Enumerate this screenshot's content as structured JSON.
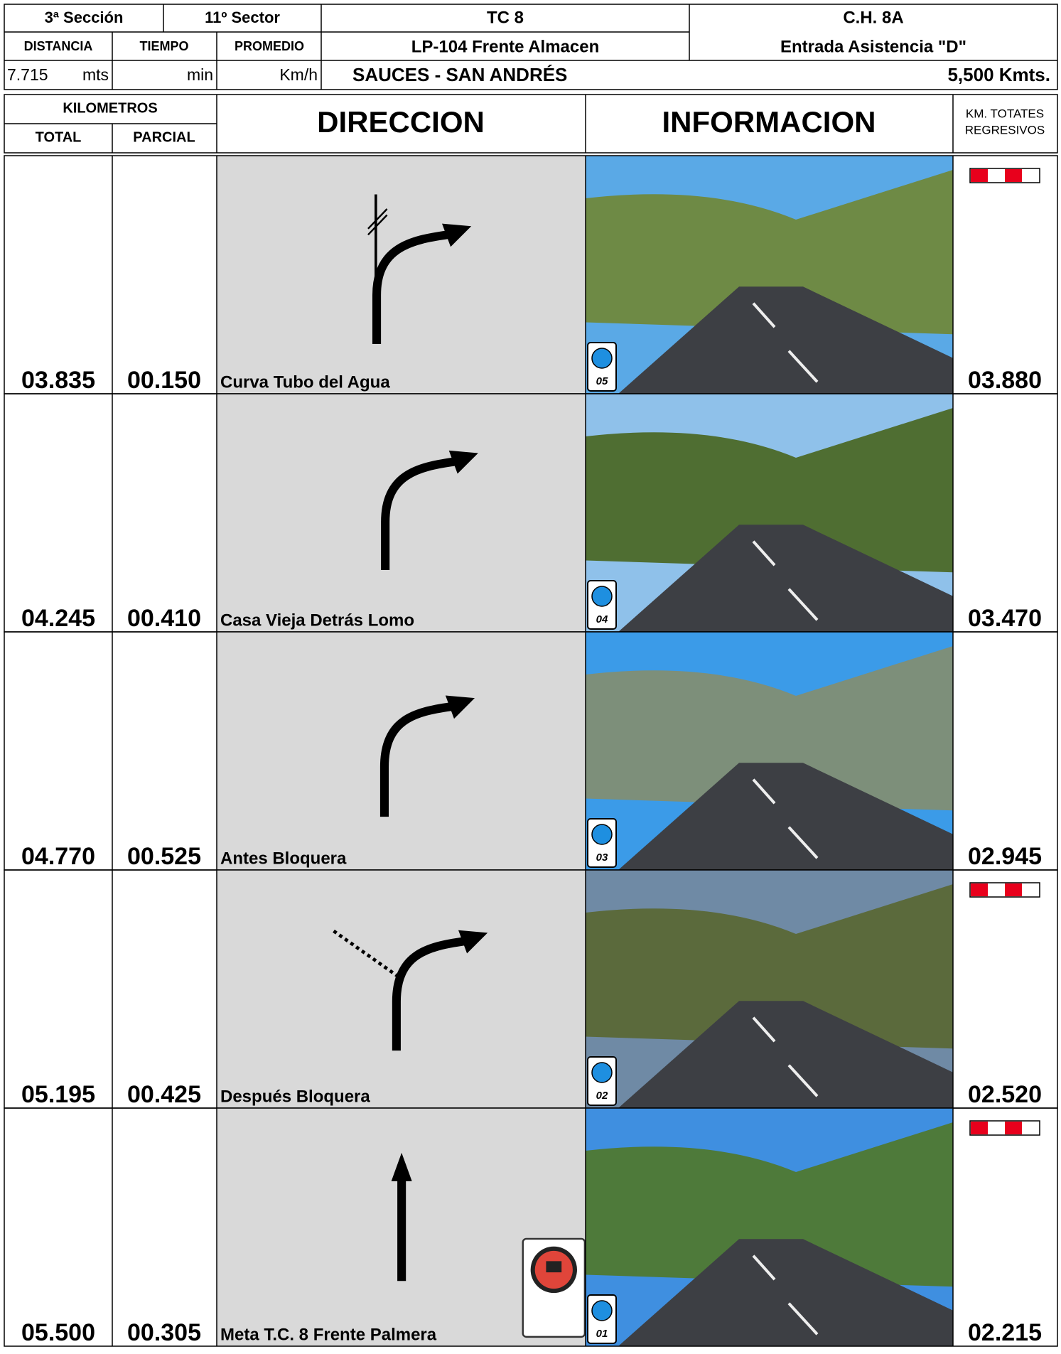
{
  "header": {
    "section": "3ª Sección",
    "sector": "11º Sector",
    "stage": "TC 8",
    "start": "LP-104 Frente Almacen",
    "control": "C.H. 8A",
    "control_desc": "Entrada Asistencia \"D\"",
    "distance_label": "DISTANCIA",
    "time_label": "TIEMPO",
    "average_label": "PROMEDIO",
    "distance": "7.715",
    "distance_unit": "mts",
    "time_unit": "min",
    "speed_unit": "Km/h",
    "route": "SAUCES - SAN ANDRÉS",
    "length": "5,500 Kmts."
  },
  "columns": {
    "kilometros": "KILOMETROS",
    "total": "TOTAL",
    "parcial": "PARCIAL",
    "direccion": "DIRECCION",
    "informacion": "INFORMACION",
    "regresivos": [
      "KM. TOTATES",
      "REGRESIVOS"
    ]
  },
  "rows": [
    {
      "total": "03.835",
      "parcial": "00.150",
      "caption": "Curva Tubo del Agua",
      "regresivo": "03.880",
      "photo_number": "05"
    },
    {
      "total": "04.245",
      "parcial": "00.410",
      "caption": "Casa Vieja Detrás Lomo",
      "regresivo": "03.470",
      "photo_number": "04"
    },
    {
      "total": "04.770",
      "parcial": "00.525",
      "caption": "Antes Bloquera",
      "regresivo": "02.945",
      "photo_number": "03"
    },
    {
      "total": "05.195",
      "parcial": "00.425",
      "caption": "Después Bloquera",
      "regresivo": "02.520",
      "photo_number": "02"
    },
    {
      "total": "05.500",
      "parcial": "00.305",
      "caption": "Meta T.C. 8 Frente Palmera",
      "regresivo": "02.215",
      "photo_number": "01"
    }
  ]
}
